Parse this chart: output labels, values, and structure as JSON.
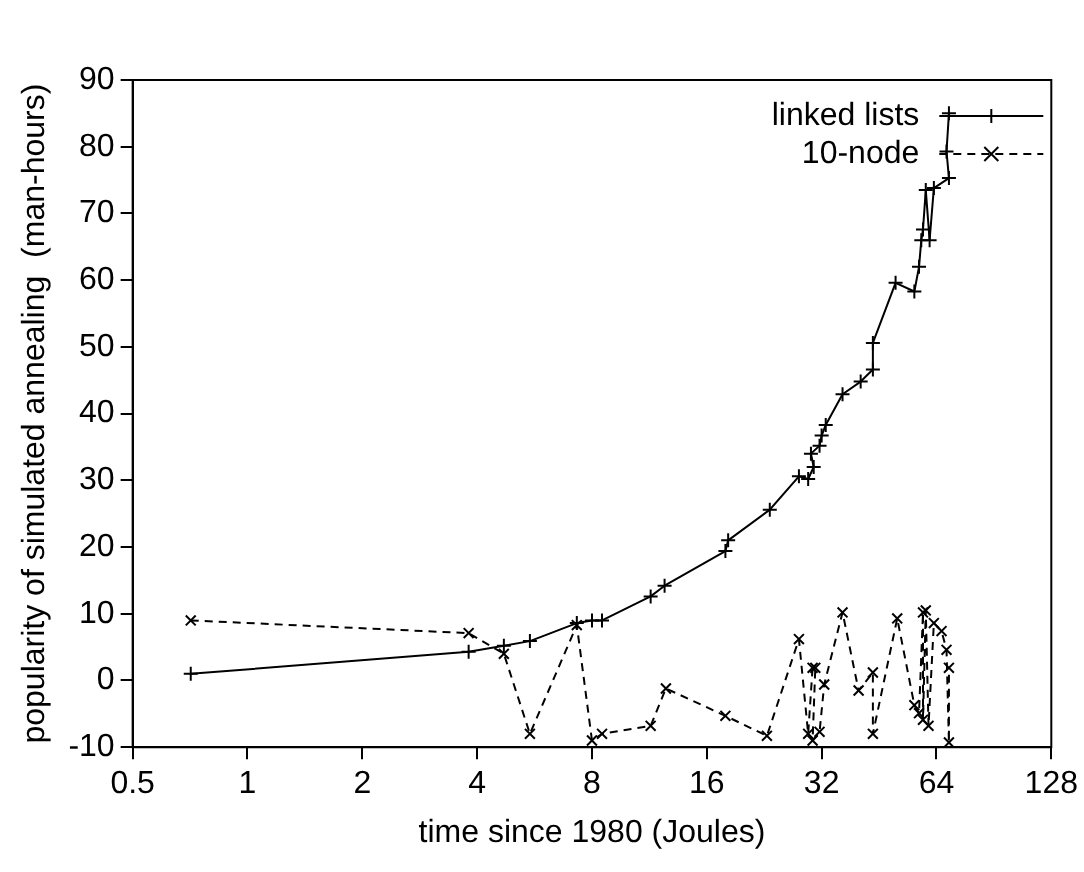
{
  "chart_data": {
    "type": "line",
    "xlabel": "time since 1980 (Joules)",
    "ylabel": "popularity of simulated annealing  (man-hours)",
    "log": "x",
    "xlim": [
      0.5,
      128
    ],
    "xticks": [
      0.5,
      1,
      2,
      4,
      8,
      16,
      32,
      64,
      128
    ],
    "ylim": [
      -10,
      90
    ],
    "yticks": [
      -10,
      0,
      10,
      20,
      30,
      40,
      50,
      60,
      70,
      80,
      90
    ],
    "grid": false,
    "legend": "top right",
    "series": [
      {
        "name": "linked lists",
        "color": "#000000",
        "marker": "plus",
        "line_style": "solid",
        "x": [
          0.71,
          3.8,
          4.7,
          5.5,
          7.3,
          8,
          8.5,
          11.4,
          12.4,
          17.9,
          18.2,
          23.4,
          27.9,
          29.5,
          30.5,
          30,
          31.6,
          32,
          32.8,
          36.3,
          40.5,
          43.6,
          43.6,
          50,
          56,
          57.6,
          58.4,
          59,
          60,
          61.4,
          63,
          69,
          68,
          69
        ],
        "values": [
          1,
          4.3,
          5.2,
          5.9,
          8.6,
          9,
          9,
          12.6,
          14.2,
          19.4,
          21,
          25.6,
          30.6,
          30.2,
          32,
          34,
          35.2,
          36.7,
          38.3,
          42.9,
          44.8,
          46.6,
          50.6,
          59.6,
          58.3,
          62,
          66,
          67.6,
          73.5,
          66,
          73.8,
          75.3,
          79.3,
          85
        ]
      },
      {
        "name": "10-node",
        "color": "#000000",
        "marker": "cross",
        "line_style": "dashed",
        "x": [
          0.71,
          3.8,
          4.7,
          5.5,
          7.3,
          8,
          8.5,
          11.4,
          12.5,
          17.9,
          23,
          27.9,
          29.5,
          30.3,
          30.8,
          30.3,
          31.6,
          32.5,
          36.3,
          40,
          43.6,
          43.6,
          50.5,
          56,
          57.6,
          59,
          59,
          60,
          61,
          63,
          66,
          68,
          69,
          69
        ],
        "values": [
          9,
          7.1,
          4,
          -8,
          8.3,
          -9,
          -8,
          -6.8,
          -1.2,
          -5.3,
          -8.3,
          6.2,
          -8,
          1.9,
          1.9,
          -9,
          -7.7,
          -0.6,
          10.2,
          -1.5,
          1.2,
          -8,
          9.3,
          -3.7,
          -4.9,
          10.2,
          -5.9,
          10.5,
          -6.8,
          8.6,
          7.4,
          4.6,
          -9.3,
          1.9
        ]
      }
    ]
  }
}
